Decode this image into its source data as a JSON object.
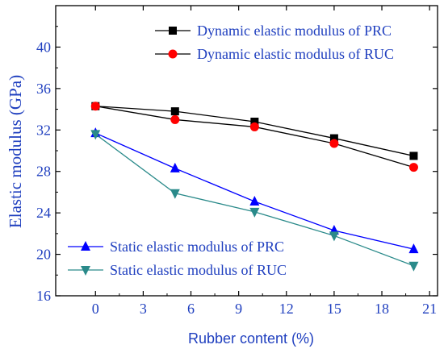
{
  "chart_data": {
    "type": "line",
    "title": "",
    "xlabel": "Rubber content (%)",
    "ylabel": "Elastic modulus (GPa)",
    "xlim": [
      -2.5,
      21.5
    ],
    "ylim": [
      16,
      44
    ],
    "x_ticks": [
      0,
      3,
      6,
      9,
      12,
      15,
      18,
      21
    ],
    "y_ticks": [
      16,
      20,
      24,
      28,
      32,
      36,
      40
    ],
    "grid": false,
    "series": [
      {
        "name": "Dynamic elastic modulus of PRC",
        "color": "#000000",
        "marker": "square",
        "x": [
          0,
          5,
          10,
          15,
          20
        ],
        "y": [
          34.3,
          33.8,
          32.8,
          31.2,
          29.5
        ]
      },
      {
        "name": "Dynamic elastic modulus of RUC",
        "color": "#ff0000",
        "line_color": "#000000",
        "marker": "circle",
        "x": [
          0,
          5,
          10,
          15,
          20
        ],
        "y": [
          34.3,
          33.0,
          32.3,
          30.7,
          28.4
        ]
      },
      {
        "name": "Static elastic modulus of PRC",
        "color": "#0000ff",
        "marker": "triangle-up",
        "x": [
          0,
          5,
          10,
          15,
          20
        ],
        "y": [
          31.7,
          28.3,
          25.1,
          22.3,
          20.5
        ]
      },
      {
        "name": "Static elastic modulus of RUC",
        "color": "#2a8a8a",
        "marker": "triangle-down",
        "x": [
          0,
          5,
          10,
          15,
          20
        ],
        "y": [
          31.6,
          25.9,
          24.1,
          21.8,
          18.9
        ]
      }
    ],
    "legends": [
      {
        "placement": "top-right",
        "entries": [
          0,
          1
        ]
      },
      {
        "placement": "bottom-left",
        "entries": [
          2,
          3
        ]
      }
    ],
    "colors": {
      "axis": "#000000",
      "text": "#1f3fbf"
    }
  }
}
